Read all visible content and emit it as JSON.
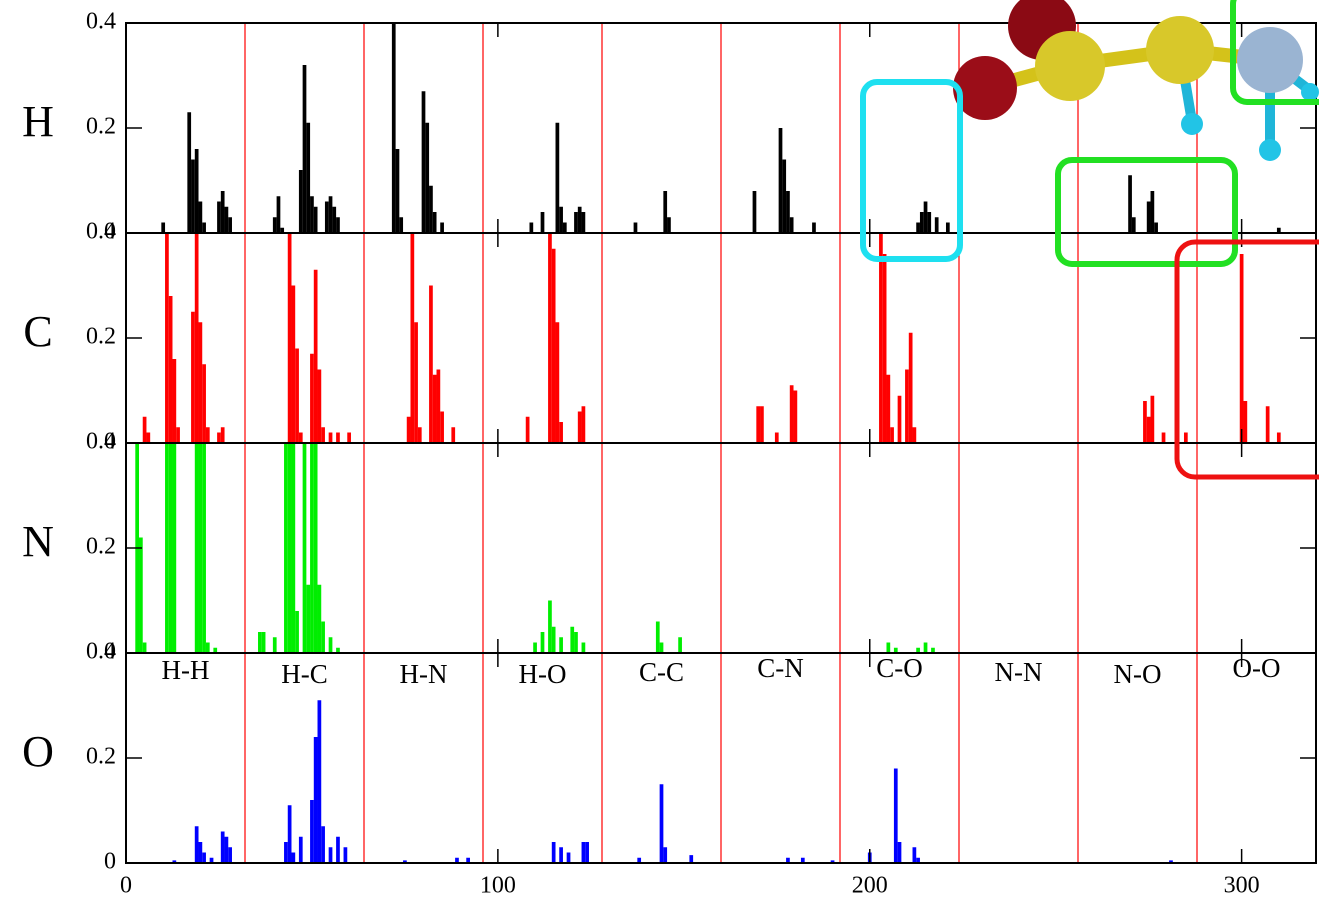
{
  "chart_data": [
    {
      "type": "bar",
      "title": "H",
      "color": "#000000",
      "xlim": [
        0,
        320
      ],
      "ylim": [
        0,
        0.4
      ],
      "yticks": [
        0,
        0.2,
        0.4
      ],
      "x": [
        10,
        17,
        18,
        19,
        20,
        21,
        25,
        26,
        27,
        28,
        40,
        41,
        42,
        47,
        48,
        49,
        50,
        51,
        54,
        55,
        56,
        57,
        72,
        73,
        74,
        80,
        81,
        82,
        83,
        85,
        109,
        112,
        116,
        117,
        118,
        121,
        122,
        123,
        137,
        145,
        146,
        169,
        176,
        177,
        178,
        179,
        185,
        213,
        214,
        215,
        216,
        218,
        221,
        270,
        271,
        275,
        276,
        277,
        310
      ],
      "values": [
        0.02,
        0.23,
        0.14,
        0.16,
        0.06,
        0.02,
        0.06,
        0.08,
        0.05,
        0.03,
        0.03,
        0.07,
        0.01,
        0.12,
        0.32,
        0.21,
        0.07,
        0.05,
        0.06,
        0.07,
        0.05,
        0.03,
        0.4,
        0.16,
        0.03,
        0.27,
        0.21,
        0.09,
        0.04,
        0.02,
        0.02,
        0.04,
        0.21,
        0.05,
        0.02,
        0.04,
        0.05,
        0.04,
        0.02,
        0.08,
        0.03,
        0.08,
        0.2,
        0.14,
        0.08,
        0.03,
        0.02,
        0.02,
        0.04,
        0.06,
        0.04,
        0.03,
        0.02,
        0.11,
        0.03,
        0.06,
        0.08,
        0.02,
        0.01
      ]
    },
    {
      "type": "bar",
      "title": "C",
      "color": "#ff0000",
      "xlim": [
        0,
        320
      ],
      "ylim": [
        0,
        0.4
      ],
      "yticks": [
        0,
        0.2,
        0.4
      ],
      "x": [
        5,
        6,
        11,
        12,
        13,
        14,
        18,
        19,
        20,
        21,
        22,
        25,
        26,
        44,
        45,
        46,
        47,
        50,
        51,
        52,
        53,
        55,
        57,
        60,
        76,
        77,
        78,
        79,
        82,
        83,
        84,
        85,
        88,
        108,
        114,
        115,
        116,
        117,
        122,
        123,
        170,
        171,
        175,
        179,
        180,
        203,
        204,
        205,
        206,
        208,
        210,
        211,
        212,
        274,
        275,
        276,
        279,
        285,
        300,
        301,
        307,
        310
      ],
      "values": [
        0.05,
        0.02,
        0.4,
        0.28,
        0.16,
        0.03,
        0.25,
        0.4,
        0.23,
        0.15,
        0.03,
        0.02,
        0.03,
        0.4,
        0.3,
        0.18,
        0.02,
        0.17,
        0.33,
        0.14,
        0.03,
        0.02,
        0.02,
        0.02,
        0.05,
        0.4,
        0.23,
        0.03,
        0.3,
        0.13,
        0.14,
        0.06,
        0.03,
        0.05,
        0.4,
        0.37,
        0.23,
        0.04,
        0.06,
        0.07,
        0.07,
        0.07,
        0.02,
        0.11,
        0.1,
        0.4,
        0.36,
        0.13,
        0.03,
        0.09,
        0.14,
        0.21,
        0.03,
        0.08,
        0.05,
        0.09,
        0.02,
        0.02,
        0.36,
        0.08,
        0.07,
        0.02
      ]
    },
    {
      "type": "bar",
      "title": "N",
      "color": "#00ee00",
      "xlim": [
        0,
        320
      ],
      "ylim": [
        0,
        0.4
      ],
      "yticks": [
        0,
        0.2,
        0.4
      ],
      "x": [
        3,
        4,
        5,
        11,
        12,
        13,
        19,
        20,
        21,
        22,
        24,
        36,
        37,
        40,
        43,
        44,
        45,
        46,
        48,
        49,
        50,
        51,
        52,
        53,
        55,
        57,
        110,
        112,
        114,
        115,
        117,
        120,
        121,
        123,
        143,
        144,
        149,
        205,
        207,
        213,
        215,
        217
      ],
      "values": [
        0.4,
        0.22,
        0.02,
        0.4,
        0.4,
        0.4,
        0.4,
        0.4,
        0.4,
        0.02,
        0.01,
        0.04,
        0.04,
        0.03,
        0.4,
        0.4,
        0.4,
        0.08,
        0.4,
        0.13,
        0.4,
        0.4,
        0.13,
        0.06,
        0.03,
        0.01,
        0.02,
        0.04,
        0.1,
        0.05,
        0.03,
        0.05,
        0.04,
        0.02,
        0.06,
        0.02,
        0.03,
        0.02,
        0.01,
        0.01,
        0.02,
        0.01
      ]
    },
    {
      "type": "bar",
      "title": "O",
      "color": "#0000ff",
      "xlim": [
        0,
        320
      ],
      "ylim": [
        0,
        0.4
      ],
      "yticks": [
        0,
        0.2,
        0.4
      ],
      "xticks": [
        0,
        100,
        200,
        300
      ],
      "x": [
        13,
        19,
        20,
        21,
        23,
        26,
        27,
        28,
        43,
        44,
        45,
        47,
        50,
        51,
        52,
        53,
        55,
        57,
        59,
        75,
        89,
        92,
        115,
        117,
        119,
        123,
        124,
        138,
        144,
        145,
        152,
        178,
        182,
        190,
        200,
        207,
        208,
        212,
        213,
        281
      ],
      "values": [
        0.005,
        0.07,
        0.04,
        0.02,
        0.01,
        0.06,
        0.05,
        0.03,
        0.04,
        0.11,
        0.02,
        0.05,
        0.12,
        0.24,
        0.31,
        0.07,
        0.03,
        0.05,
        0.03,
        0.005,
        0.01,
        0.01,
        0.04,
        0.03,
        0.02,
        0.04,
        0.04,
        0.01,
        0.15,
        0.03,
        0.015,
        0.01,
        0.01,
        0.005,
        0.02,
        0.18,
        0.04,
        0.03,
        0.01,
        0.005
      ]
    }
  ],
  "dividers": [
    32,
    64,
    96,
    128,
    160,
    192,
    224,
    256,
    288
  ],
  "pair_labels": [
    "H-H",
    "H-C",
    "H-N",
    "H-O",
    "C-C",
    "C-N",
    "C-O",
    "N-N",
    "N-O",
    "O-O"
  ]
}
